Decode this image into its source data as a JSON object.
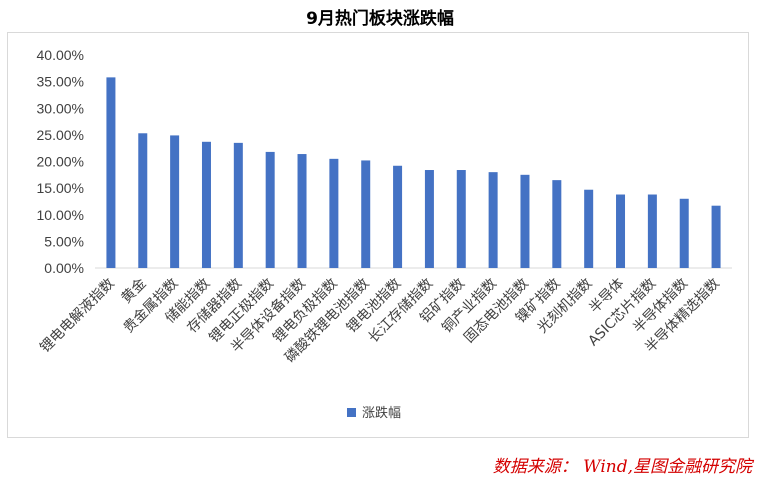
{
  "title": "9月热门板块涨跌幅",
  "source_note": "数据来源： Wind,星图金融研究院",
  "colors": {
    "bar": "#4472c4",
    "axis": "#d9d9d9",
    "source_text": "#d40000"
  },
  "chart_data": {
    "type": "bar",
    "title": "9月热门板块涨跌幅",
    "categories": [
      "锂电电解液指数",
      "黄金",
      "贵金属指数",
      "储能指数",
      "存储器指数",
      "锂电正极指数",
      "半导体设备指数",
      "锂电负极指数",
      "磷酸铁锂电池指数",
      "锂电池指数",
      "长江存储指数",
      "铝矿指数",
      "铜产业指数",
      "固态电池指数",
      "镍矿指数",
      "光刻机指数",
      "半导体",
      "ASIC芯片指数",
      "半导体指数",
      "半导体精选指数"
    ],
    "series": [
      {
        "name": "涨跌幅",
        "values": [
          35.8,
          25.3,
          24.9,
          23.7,
          23.5,
          21.8,
          21.4,
          20.5,
          20.2,
          19.2,
          18.4,
          18.4,
          18.0,
          17.5,
          16.5,
          14.7,
          13.8,
          13.8,
          13.0,
          11.7
        ]
      }
    ],
    "ylim": [
      0,
      40
    ],
    "yticks": [
      "0.00%",
      "5.00%",
      "10.00%",
      "15.00%",
      "20.00%",
      "25.00%",
      "30.00%",
      "35.00%",
      "40.00%"
    ],
    "grid": false,
    "legend_position": "bottom"
  }
}
